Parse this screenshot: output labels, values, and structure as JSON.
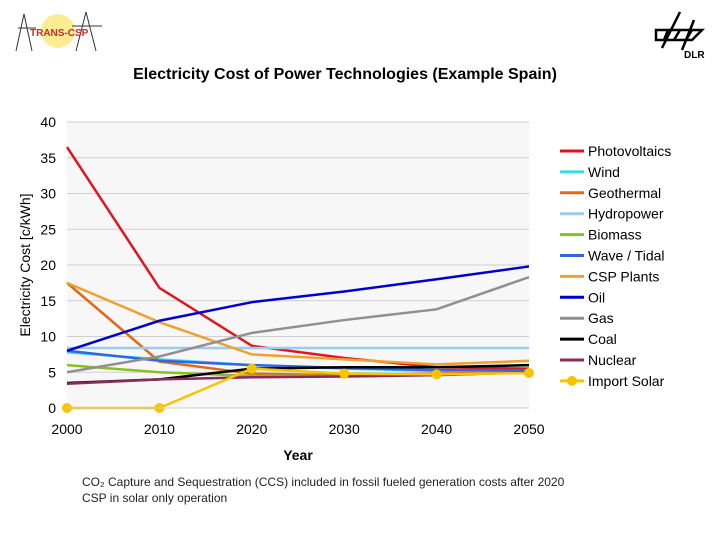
{
  "title": "Electricity Cost of Power Technologies (Example Spain)",
  "logos": {
    "left": "TRANS-CSP",
    "right": "DLR"
  },
  "notes": [
    "CO₂ Capture and Sequestration (CCS) included in fossil fueled generation costs after 2020",
    "CSP in solar only operation"
  ],
  "chart_data": {
    "type": "line",
    "title": "Electricity Cost of Power Technologies (Example Spain)",
    "xlabel": "Year",
    "ylabel": "Electricity Cost [c/kWh]",
    "x": [
      2000,
      2010,
      2020,
      2030,
      2040,
      2050
    ],
    "xlim": [
      2000,
      2050
    ],
    "ylim": [
      0,
      40
    ],
    "yticks": [
      0,
      5,
      10,
      15,
      20,
      25,
      30,
      35,
      40
    ],
    "grid": true,
    "legend": "right",
    "series": [
      {
        "name": "Photovoltaics",
        "color": "#e0151b",
        "values": [
          36.5,
          16.8,
          8.7,
          7.0,
          5.7,
          5.5
        ]
      },
      {
        "name": "Wind",
        "color": "#33ddee",
        "values": [
          7.8,
          6.8,
          6.0,
          5.5,
          5.2,
          5.2
        ]
      },
      {
        "name": "Geothermal",
        "color": "#e06a1a",
        "values": [
          17.5,
          6.5,
          4.8,
          4.6,
          4.8,
          5.0
        ]
      },
      {
        "name": "Hydropower",
        "color": "#99ccee",
        "values": [
          8.4,
          8.4,
          8.4,
          8.4,
          8.4,
          8.4
        ]
      },
      {
        "name": "Biomass",
        "color": "#88c020",
        "values": [
          6.0,
          5.0,
          4.5,
          4.5,
          4.6,
          5.0
        ]
      },
      {
        "name": "Wave / Tidal",
        "color": "#3366dd",
        "values": [
          8.0,
          6.6,
          6.0,
          5.6,
          5.3,
          5.3
        ]
      },
      {
        "name": "CSP Plants",
        "color": "#f0a030",
        "values": [
          17.5,
          12.0,
          7.5,
          6.8,
          6.1,
          6.6
        ]
      },
      {
        "name": "Oil",
        "color": "#0000cc",
        "values": [
          8.0,
          12.2,
          14.8,
          16.3,
          18.0,
          19.8
        ]
      },
      {
        "name": "Gas",
        "color": "#909090",
        "values": [
          5.0,
          7.2,
          10.5,
          12.3,
          13.8,
          18.3
        ]
      },
      {
        "name": "Coal",
        "color": "#000000",
        "values": [
          3.5,
          4.0,
          5.5,
          5.7,
          5.7,
          6.0
        ]
      },
      {
        "name": "Nuclear",
        "color": "#8b2a5a",
        "values": [
          3.4,
          4.0,
          4.3,
          4.4,
          4.6,
          5.0
        ]
      },
      {
        "name": "Import Solar",
        "color": "#f8c400",
        "marker": "circle",
        "values": [
          0,
          0,
          5.5,
          4.8,
          4.7,
          4.9
        ]
      }
    ]
  }
}
